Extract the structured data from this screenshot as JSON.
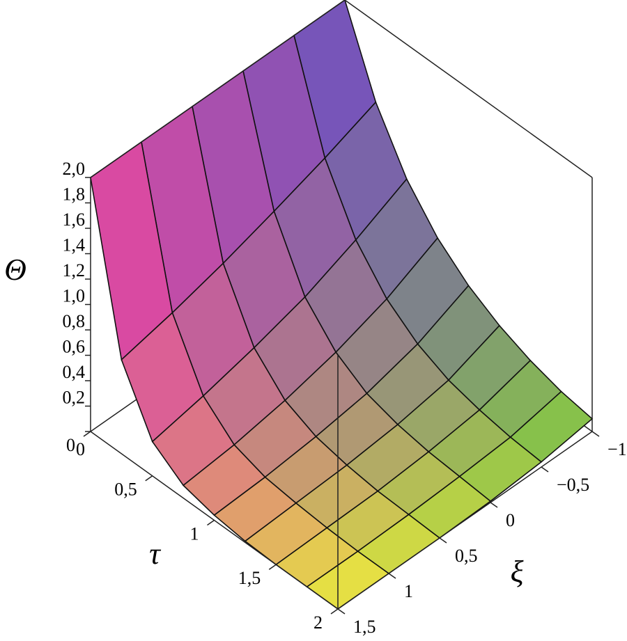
{
  "chart_data": {
    "type": "surface",
    "zlabel": "Θ",
    "xlabel": "τ",
    "ylabel": "ξ",
    "tau": [
      0,
      0.25,
      0.5,
      0.75,
      1,
      1.25,
      1.5,
      1.75,
      2
    ],
    "xi": [
      -1,
      -0.5,
      0,
      0.5,
      1,
      1.5
    ],
    "z": [
      [
        2,
        2,
        2,
        2,
        2,
        2
      ],
      [
        1.37,
        1.21,
        1.07,
        0.94,
        0.83,
        0.74
      ],
      [
        0.94,
        0.74,
        0.57,
        0.45,
        0.35,
        0.27
      ],
      [
        0.65,
        0.45,
        0.31,
        0.21,
        0.14,
        0.1
      ],
      [
        0.45,
        0.27,
        0.16,
        0.1,
        0.06,
        0.04
      ],
      [
        0.31,
        0.16,
        0.09,
        0.05,
        0.03,
        0.01
      ],
      [
        0.21,
        0.1,
        0.05,
        0.02,
        0.01,
        0
      ],
      [
        0.14,
        0.06,
        0.03,
        0.01,
        0,
        0
      ],
      [
        0.1,
        0.04,
        0.01,
        0,
        0,
        0
      ]
    ],
    "xlim": [
      0,
      2
    ],
    "ylim": [
      -1,
      1.5
    ],
    "zlim": [
      0,
      2
    ],
    "xticks": [
      0,
      {
        "value": 0.5,
        "label": "0,5"
      },
      1,
      {
        "value": 1.5,
        "label": "1,5"
      },
      2
    ],
    "yticks": [
      {
        "value": -1,
        "label": "−1"
      },
      {
        "value": -0.5,
        "label": "−0,5"
      },
      0,
      {
        "value": 0.5,
        "label": "0,5"
      },
      1,
      {
        "value": 1.5,
        "label": "1,5"
      }
    ],
    "zticks": [
      0,
      {
        "value": 0.2,
        "label": "0,2"
      },
      {
        "value": 0.4,
        "label": "0,4"
      },
      {
        "value": 0.6,
        "label": "0,6"
      },
      {
        "value": 0.8,
        "label": "0,8"
      },
      {
        "value": 1.0,
        "label": "1,0"
      },
      {
        "value": 1.2,
        "label": "1,2"
      },
      {
        "value": 1.4,
        "label": "1,4"
      },
      {
        "value": 1.6,
        "label": "1,6"
      },
      {
        "value": 1.8,
        "label": "1,8"
      },
      {
        "value": 2.0,
        "label": "2,0"
      }
    ],
    "colors": [
      "#6a4fc4",
      "#e43ea6",
      "#7cc444",
      "#f2ee3c"
    ]
  }
}
